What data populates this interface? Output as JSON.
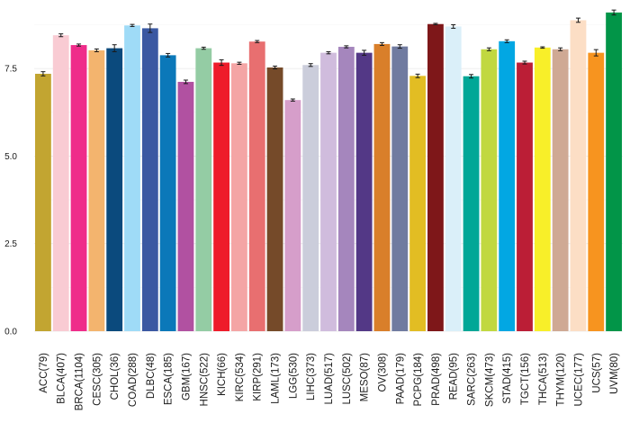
{
  "chart_data": {
    "type": "bar",
    "title": "",
    "xlabel": "",
    "ylabel": "",
    "ylim": [
      0,
      9.2
    ],
    "yticks": [
      0.0,
      2.5,
      5.0,
      7.5
    ],
    "ytick_labels": [
      "0.0",
      "2.5",
      "5.0",
      "7.5"
    ],
    "grid": true,
    "error_bars": true,
    "categories": [
      "ACC(79)",
      "BLCA(407)",
      "BRCA(1104)",
      "CESC(305)",
      "CHOL(36)",
      "COAD(288)",
      "DLBC(48)",
      "ESCA(185)",
      "GBM(167)",
      "HNSC(522)",
      "KICH(66)",
      "KIRC(534)",
      "KIRP(291)",
      "LAML(173)",
      "LGG(530)",
      "LIHC(373)",
      "LUAD(517)",
      "LUSC(502)",
      "MESO(87)",
      "OV(308)",
      "PAAD(179)",
      "PCPG(184)",
      "PRAD(498)",
      "READ(95)",
      "SARC(263)",
      "SKCM(473)",
      "STAD(415)",
      "TGCT(156)",
      "THCA(513)",
      "THYM(120)",
      "UCEC(177)",
      "UCS(57)",
      "UVM(80)"
    ],
    "values": [
      7.35,
      8.45,
      8.17,
      8.02,
      8.08,
      8.73,
      8.65,
      7.88,
      7.12,
      8.08,
      7.67,
      7.65,
      8.27,
      7.53,
      6.6,
      7.6,
      7.95,
      8.12,
      7.95,
      8.2,
      8.13,
      7.29,
      8.77,
      8.7,
      7.28,
      8.05,
      8.28,
      7.67,
      8.1,
      8.05,
      8.88,
      7.95,
      9.1
    ],
    "errors": [
      0.06,
      0.04,
      0.03,
      0.04,
      0.1,
      0.03,
      0.12,
      0.05,
      0.05,
      0.03,
      0.08,
      0.03,
      0.03,
      0.04,
      0.03,
      0.04,
      0.03,
      0.03,
      0.07,
      0.04,
      0.05,
      0.05,
      0.02,
      0.05,
      0.05,
      0.04,
      0.04,
      0.04,
      0.02,
      0.04,
      0.06,
      0.09,
      0.07
    ],
    "colors": [
      "#C2A531",
      "#F9CBD3",
      "#EF2C8A",
      "#F3B46E",
      "#0B4A7D",
      "#9FDBF7",
      "#3A58A2",
      "#0B78B9",
      "#B151A1",
      "#94CCA4",
      "#EE1C2A",
      "#F4A5A5",
      "#E86F70",
      "#754A29",
      "#D69ECA",
      "#CBCDDB",
      "#D0BCDD",
      "#A586BD",
      "#533886",
      "#D97F2A",
      "#707BA0",
      "#E2BD23",
      "#7E1719",
      "#DAEFF9",
      "#01A797",
      "#C1D840",
      "#02A7E3",
      "#BB1E36",
      "#F8EF29",
      "#CFA994",
      "#FCDEC5",
      "#F7941F",
      "#029548"
    ]
  }
}
